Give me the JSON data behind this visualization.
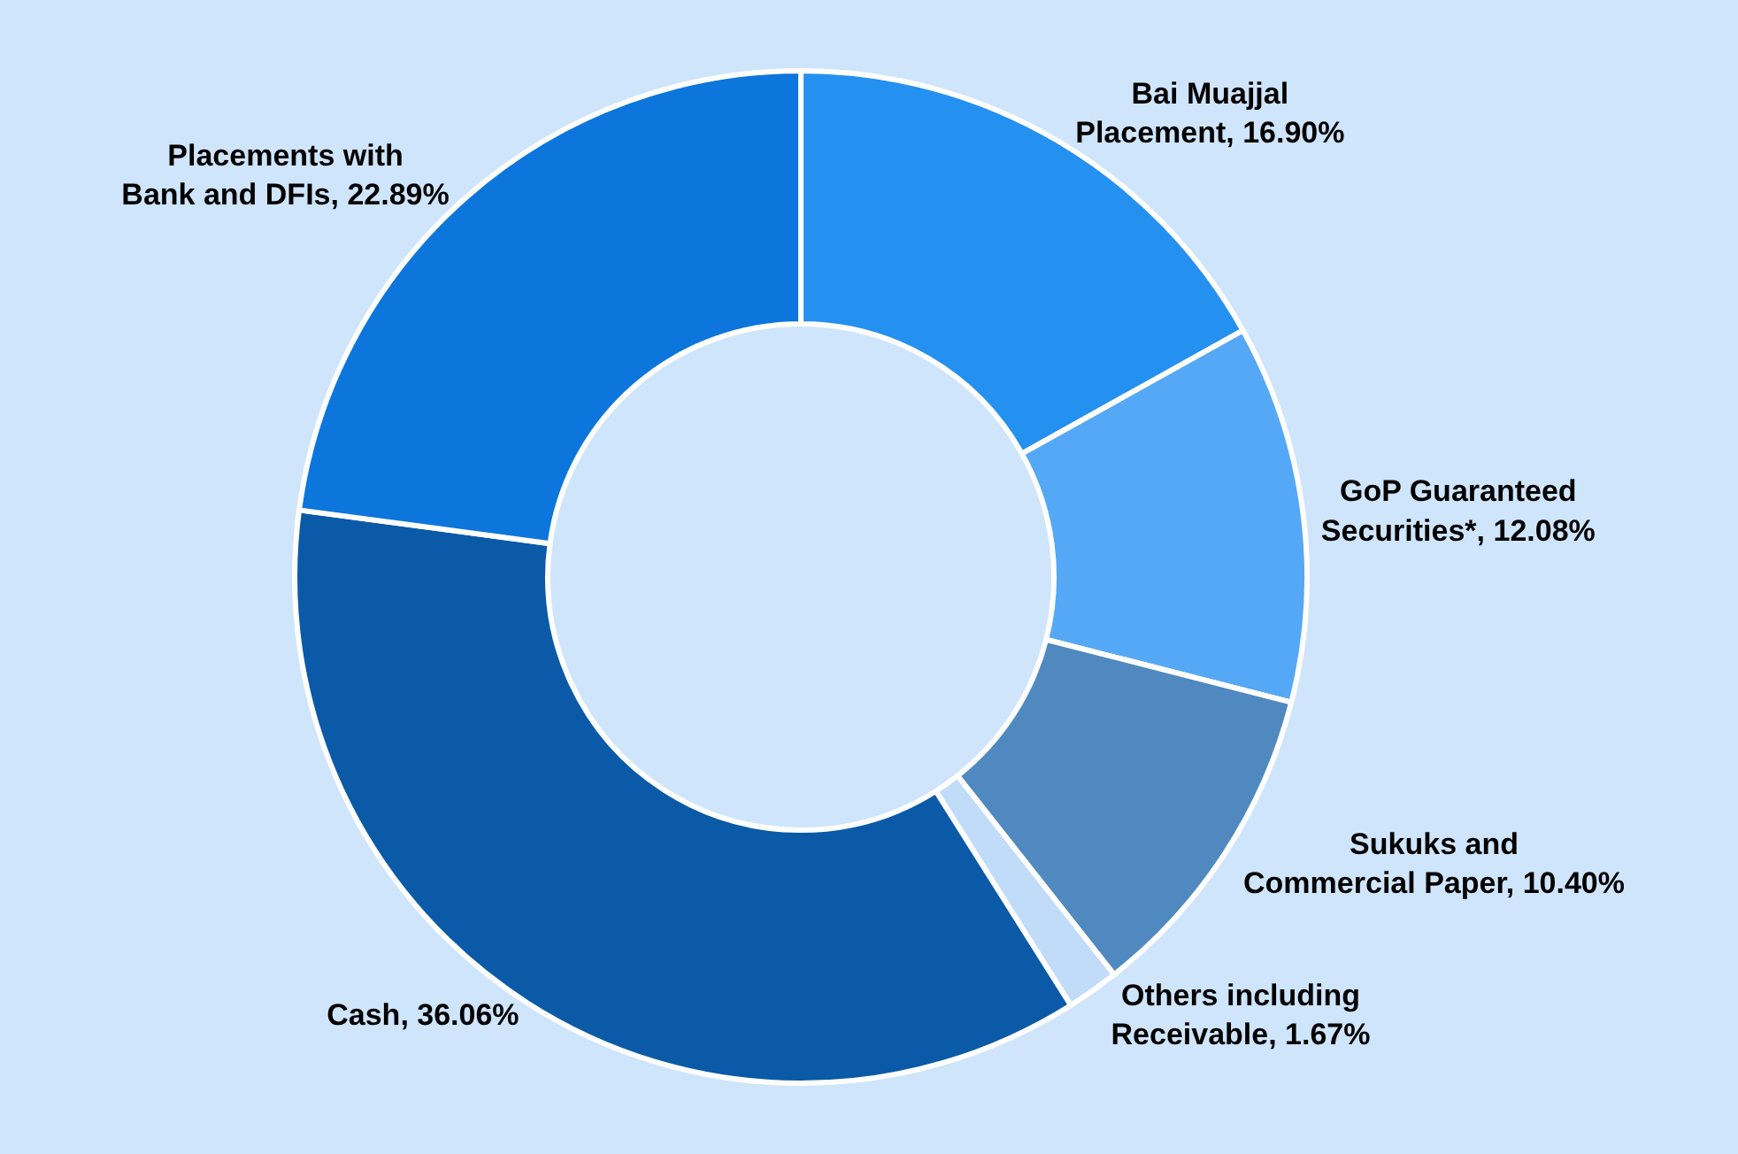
{
  "chart_data": {
    "type": "donut",
    "categories": [
      "Bai Muajjal Placement",
      "GoP Guaranteed Securities*",
      "Sukuks and Commercial Paper",
      "Others including Receivable",
      "Cash",
      "Placements with Bank and DFIs"
    ],
    "values": [
      16.9,
      12.08,
      10.4,
      1.67,
      36.06,
      22.89
    ],
    "value_labels": [
      "16.90%",
      "12.08%",
      "10.40%",
      "1.67%",
      "36.06%",
      "22.89%"
    ],
    "colors": [
      "#2490f0",
      "#55a8f5",
      "#4f89bf",
      "#c0dcf8",
      "#0b5aa8",
      "#0c76dc"
    ],
    "legend": false
  }
}
